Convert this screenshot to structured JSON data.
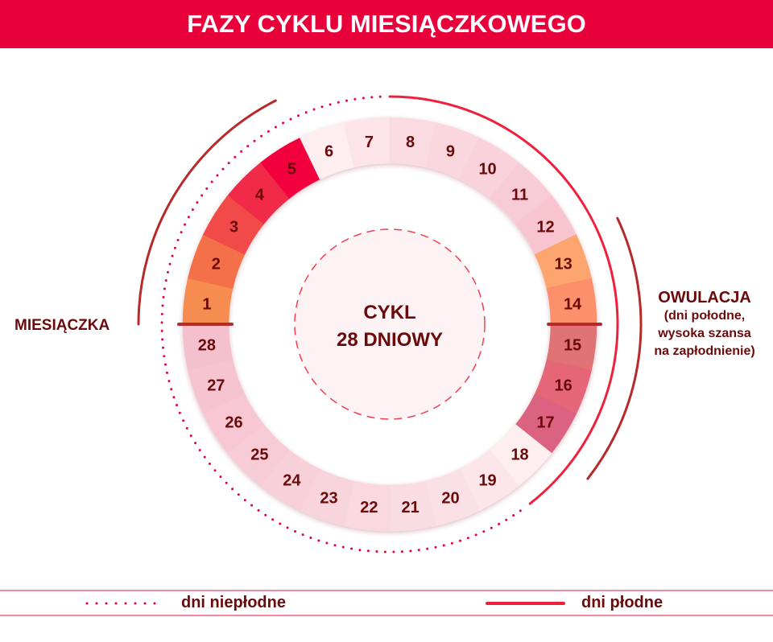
{
  "title": "FAZY CYKLU MIESIĄCZKOWEGO",
  "center": {
    "line1": "CYKL",
    "line2": "28 DNIOWY"
  },
  "labels": {
    "menstruation": "MIESIĄCZKA",
    "ovulation_title": "OWULACJA",
    "ovulation_line1": "(dni połodne,",
    "ovulation_line2": "wysoka szansa",
    "ovulation_line3": "na zapłodnienie)"
  },
  "legend": {
    "infertile": "dni niepłodne",
    "fertile": "dni płodne"
  },
  "days": [
    {
      "day": "1",
      "color": "#f68c50"
    },
    {
      "day": "2",
      "color": "#f3704a"
    },
    {
      "day": "3",
      "color": "#f24a48"
    },
    {
      "day": "4",
      "color": "#f12a48"
    },
    {
      "day": "5",
      "color": "#f2003c"
    },
    {
      "day": "6",
      "color": "#fdeef0"
    },
    {
      "day": "7",
      "color": "#fce4e8"
    },
    {
      "day": "8",
      "color": "#fbdbe2"
    },
    {
      "day": "9",
      "color": "#fad6de"
    },
    {
      "day": "10",
      "color": "#f9d2db"
    },
    {
      "day": "11",
      "color": "#f8ccd6"
    },
    {
      "day": "12",
      "color": "#f7c4d0"
    },
    {
      "day": "13",
      "color": "#fda56e"
    },
    {
      "day": "14",
      "color": "#fd8f6a"
    },
    {
      "day": "15",
      "color": "#df7374"
    },
    {
      "day": "16",
      "color": "#e56677"
    },
    {
      "day": "17",
      "color": "#dc6282"
    },
    {
      "day": "18",
      "color": "#fdeef0"
    },
    {
      "day": "19",
      "color": "#fce6ea"
    },
    {
      "day": "20",
      "color": "#fbe0e6"
    },
    {
      "day": "21",
      "color": "#fadce3"
    },
    {
      "day": "22",
      "color": "#f9d8e0"
    },
    {
      "day": "23",
      "color": "#f8d4dd"
    },
    {
      "day": "24",
      "color": "#f8d0da"
    },
    {
      "day": "25",
      "color": "#f7ccd7"
    },
    {
      "day": "26",
      "color": "#f7c8d4"
    },
    {
      "day": "27",
      "color": "#f6c4d1"
    },
    {
      "day": "28",
      "color": "#f5c0ce"
    }
  ],
  "colors": {
    "accent": "#e8003a",
    "text": "#6b0a0a",
    "phase_arc": "#b52a2a",
    "fertile": "#f0203c",
    "infertile_dots": "#e8003a"
  }
}
